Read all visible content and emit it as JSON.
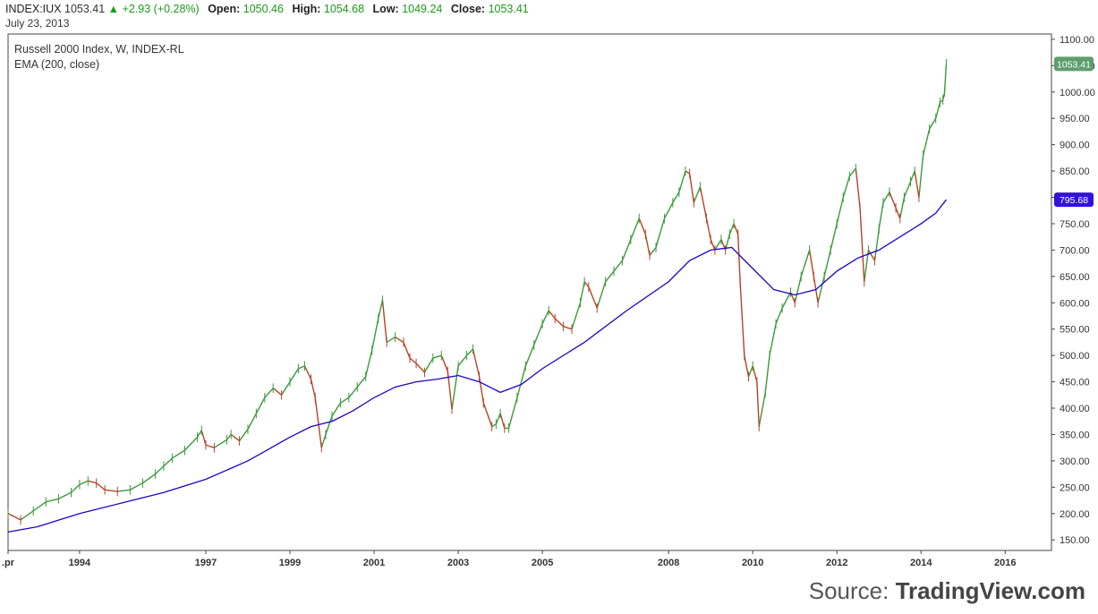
{
  "header": {
    "symbol": "INDEX:IUX",
    "last": "1053.41",
    "change": "+2.93 (+0.28%)",
    "open_label": "Open:",
    "open": "1050.46",
    "high_label": "High:",
    "high": "1054.68",
    "low_label": "Low:",
    "low": "1049.24",
    "close_label": "Close:",
    "close": "1053.41",
    "date": "July 23, 2013"
  },
  "legend": {
    "title": "Russell 2000 Index, W, INDEX-RL",
    "indicator": "EMA (200, close)"
  },
  "source": {
    "prefix": "Source:",
    "name": "TradingView.com"
  },
  "colors": {
    "up": "#3a9a3a",
    "down": "#b5442a",
    "ema": "#2200cc",
    "grid": "#444444"
  },
  "chart_data": {
    "type": "line",
    "title": "Russell 2000 Index, W, INDEX-RL",
    "ylim": [
      130,
      1110
    ],
    "xlim": [
      1991.3,
      2016.1
    ],
    "y_ticks": [
      "150.00",
      "200.00",
      "250.00",
      "300.00",
      "350.00",
      "400.00",
      "450.00",
      "500.00",
      "550.00",
      "600.00",
      "650.00",
      "700.00",
      "750.00",
      "800.00",
      "850.00",
      "900.00",
      "950.00",
      "1000.00",
      "1050.00",
      "1100.00"
    ],
    "x_ticks": [
      {
        "x": 1991.3,
        "label": ".pr"
      },
      {
        "x": 1993.0,
        "label": "1994"
      },
      {
        "x": 1996.0,
        "label": "1997"
      },
      {
        "x": 1998.0,
        "label": "1999"
      },
      {
        "x": 2000.0,
        "label": "2001"
      },
      {
        "x": 2002.0,
        "label": "2003"
      },
      {
        "x": 2004.0,
        "label": "2005"
      },
      {
        "x": 2007.0,
        "label": "2008"
      },
      {
        "x": 2009.0,
        "label": "2010"
      },
      {
        "x": 2011.0,
        "label": "2012"
      },
      {
        "x": 2013.0,
        "label": "2014"
      },
      {
        "x": 2015.0,
        "label": "2016"
      }
    ],
    "series": [
      {
        "name": "Russell 2000 Index",
        "points": [
          [
            1991.3,
            200
          ],
          [
            1991.6,
            188
          ],
          [
            1991.9,
            205
          ],
          [
            1992.2,
            222
          ],
          [
            1992.5,
            228
          ],
          [
            1992.8,
            240
          ],
          [
            1993.0,
            255
          ],
          [
            1993.2,
            262
          ],
          [
            1993.4,
            258
          ],
          [
            1993.6,
            245
          ],
          [
            1993.9,
            242
          ],
          [
            1994.2,
            245
          ],
          [
            1994.5,
            258
          ],
          [
            1994.8,
            275
          ],
          [
            1995.0,
            290
          ],
          [
            1995.2,
            305
          ],
          [
            1995.5,
            320
          ],
          [
            1995.8,
            345
          ],
          [
            1995.9,
            358
          ],
          [
            1996.0,
            330
          ],
          [
            1996.2,
            325
          ],
          [
            1996.5,
            340
          ],
          [
            1996.6,
            350
          ],
          [
            1996.8,
            338
          ],
          [
            1997.0,
            360
          ],
          [
            1997.2,
            390
          ],
          [
            1997.4,
            420
          ],
          [
            1997.6,
            438
          ],
          [
            1997.8,
            425
          ],
          [
            1998.0,
            450
          ],
          [
            1998.2,
            475
          ],
          [
            1998.35,
            480
          ],
          [
            1998.5,
            455
          ],
          [
            1998.6,
            420
          ],
          [
            1998.75,
            325
          ],
          [
            1998.85,
            350
          ],
          [
            1999.0,
            385
          ],
          [
            1999.2,
            410
          ],
          [
            1999.4,
            420
          ],
          [
            1999.6,
            440
          ],
          [
            1999.8,
            460
          ],
          [
            1999.95,
            510
          ],
          [
            2000.1,
            570
          ],
          [
            2000.2,
            605
          ],
          [
            2000.3,
            525
          ],
          [
            2000.5,
            535
          ],
          [
            2000.7,
            525
          ],
          [
            2000.85,
            495
          ],
          [
            2001.0,
            485
          ],
          [
            2001.2,
            468
          ],
          [
            2001.4,
            495
          ],
          [
            2001.6,
            500
          ],
          [
            2001.75,
            470
          ],
          [
            2001.85,
            398
          ],
          [
            2002.0,
            480
          ],
          [
            2002.2,
            500
          ],
          [
            2002.35,
            512
          ],
          [
            2002.5,
            460
          ],
          [
            2002.6,
            410
          ],
          [
            2002.8,
            365
          ],
          [
            2002.9,
            370
          ],
          [
            2003.0,
            390
          ],
          [
            2003.1,
            362
          ],
          [
            2003.2,
            362
          ],
          [
            2003.4,
            420
          ],
          [
            2003.6,
            480
          ],
          [
            2003.8,
            520
          ],
          [
            2004.0,
            560
          ],
          [
            2004.15,
            585
          ],
          [
            2004.3,
            570
          ],
          [
            2004.5,
            555
          ],
          [
            2004.7,
            550
          ],
          [
            2004.9,
            600
          ],
          [
            2005.0,
            640
          ],
          [
            2005.1,
            630
          ],
          [
            2005.3,
            590
          ],
          [
            2005.5,
            640
          ],
          [
            2005.7,
            660
          ],
          [
            2005.9,
            680
          ],
          [
            2006.1,
            720
          ],
          [
            2006.3,
            760
          ],
          [
            2006.45,
            730
          ],
          [
            2006.55,
            690
          ],
          [
            2006.7,
            705
          ],
          [
            2006.9,
            760
          ],
          [
            2007.1,
            790
          ],
          [
            2007.25,
            810
          ],
          [
            2007.4,
            850
          ],
          [
            2007.5,
            845
          ],
          [
            2007.6,
            790
          ],
          [
            2007.75,
            820
          ],
          [
            2007.9,
            760
          ],
          [
            2008.0,
            720
          ],
          [
            2008.1,
            700
          ],
          [
            2008.25,
            720
          ],
          [
            2008.35,
            700
          ],
          [
            2008.45,
            730
          ],
          [
            2008.55,
            750
          ],
          [
            2008.65,
            730
          ],
          [
            2008.7,
            640
          ],
          [
            2008.8,
            500
          ],
          [
            2008.9,
            460
          ],
          [
            2009.0,
            480
          ],
          [
            2009.1,
            450
          ],
          [
            2009.15,
            365
          ],
          [
            2009.3,
            430
          ],
          [
            2009.4,
            500
          ],
          [
            2009.55,
            560
          ],
          [
            2009.7,
            590
          ],
          [
            2009.9,
            620
          ],
          [
            2010.0,
            600
          ],
          [
            2010.15,
            650
          ],
          [
            2010.35,
            700
          ],
          [
            2010.45,
            650
          ],
          [
            2010.55,
            600
          ],
          [
            2010.7,
            650
          ],
          [
            2010.85,
            700
          ],
          [
            2011.0,
            750
          ],
          [
            2011.15,
            800
          ],
          [
            2011.3,
            840
          ],
          [
            2011.45,
            855
          ],
          [
            2011.55,
            780
          ],
          [
            2011.65,
            640
          ],
          [
            2011.75,
            700
          ],
          [
            2011.9,
            680
          ],
          [
            2012.0,
            740
          ],
          [
            2012.1,
            790
          ],
          [
            2012.25,
            810
          ],
          [
            2012.4,
            780
          ],
          [
            2012.5,
            760
          ],
          [
            2012.6,
            800
          ],
          [
            2012.75,
            830
          ],
          [
            2012.85,
            850
          ],
          [
            2012.95,
            800
          ],
          [
            2013.05,
            880
          ],
          [
            2013.2,
            930
          ],
          [
            2013.35,
            950
          ],
          [
            2013.45,
            980
          ],
          [
            2013.52,
            985
          ],
          [
            2013.56,
            1000
          ],
          [
            2013.6,
            1053.41
          ]
        ]
      },
      {
        "name": "EMA (200, close)",
        "points": [
          [
            1991.3,
            165
          ],
          [
            1992.0,
            175
          ],
          [
            1993.0,
            200
          ],
          [
            1994.0,
            220
          ],
          [
            1995.0,
            240
          ],
          [
            1996.0,
            265
          ],
          [
            1997.0,
            300
          ],
          [
            1998.0,
            345
          ],
          [
            1998.5,
            365
          ],
          [
            1999.0,
            375
          ],
          [
            1999.5,
            395
          ],
          [
            2000.0,
            420
          ],
          [
            2000.5,
            440
          ],
          [
            2001.0,
            450
          ],
          [
            2001.5,
            455
          ],
          [
            2002.0,
            462
          ],
          [
            2002.5,
            450
          ],
          [
            2003.0,
            430
          ],
          [
            2003.5,
            445
          ],
          [
            2004.0,
            475
          ],
          [
            2005.0,
            525
          ],
          [
            2006.0,
            585
          ],
          [
            2007.0,
            640
          ],
          [
            2007.5,
            680
          ],
          [
            2008.0,
            700
          ],
          [
            2008.5,
            705
          ],
          [
            2009.0,
            665
          ],
          [
            2009.5,
            625
          ],
          [
            2010.0,
            615
          ],
          [
            2010.5,
            625
          ],
          [
            2011.0,
            660
          ],
          [
            2011.5,
            685
          ],
          [
            2012.0,
            700
          ],
          [
            2012.5,
            725
          ],
          [
            2013.0,
            750
          ],
          [
            2013.35,
            770
          ],
          [
            2013.6,
            795.68
          ]
        ]
      }
    ],
    "last_price_label": "1053.41",
    "ema_label": "795.68"
  }
}
